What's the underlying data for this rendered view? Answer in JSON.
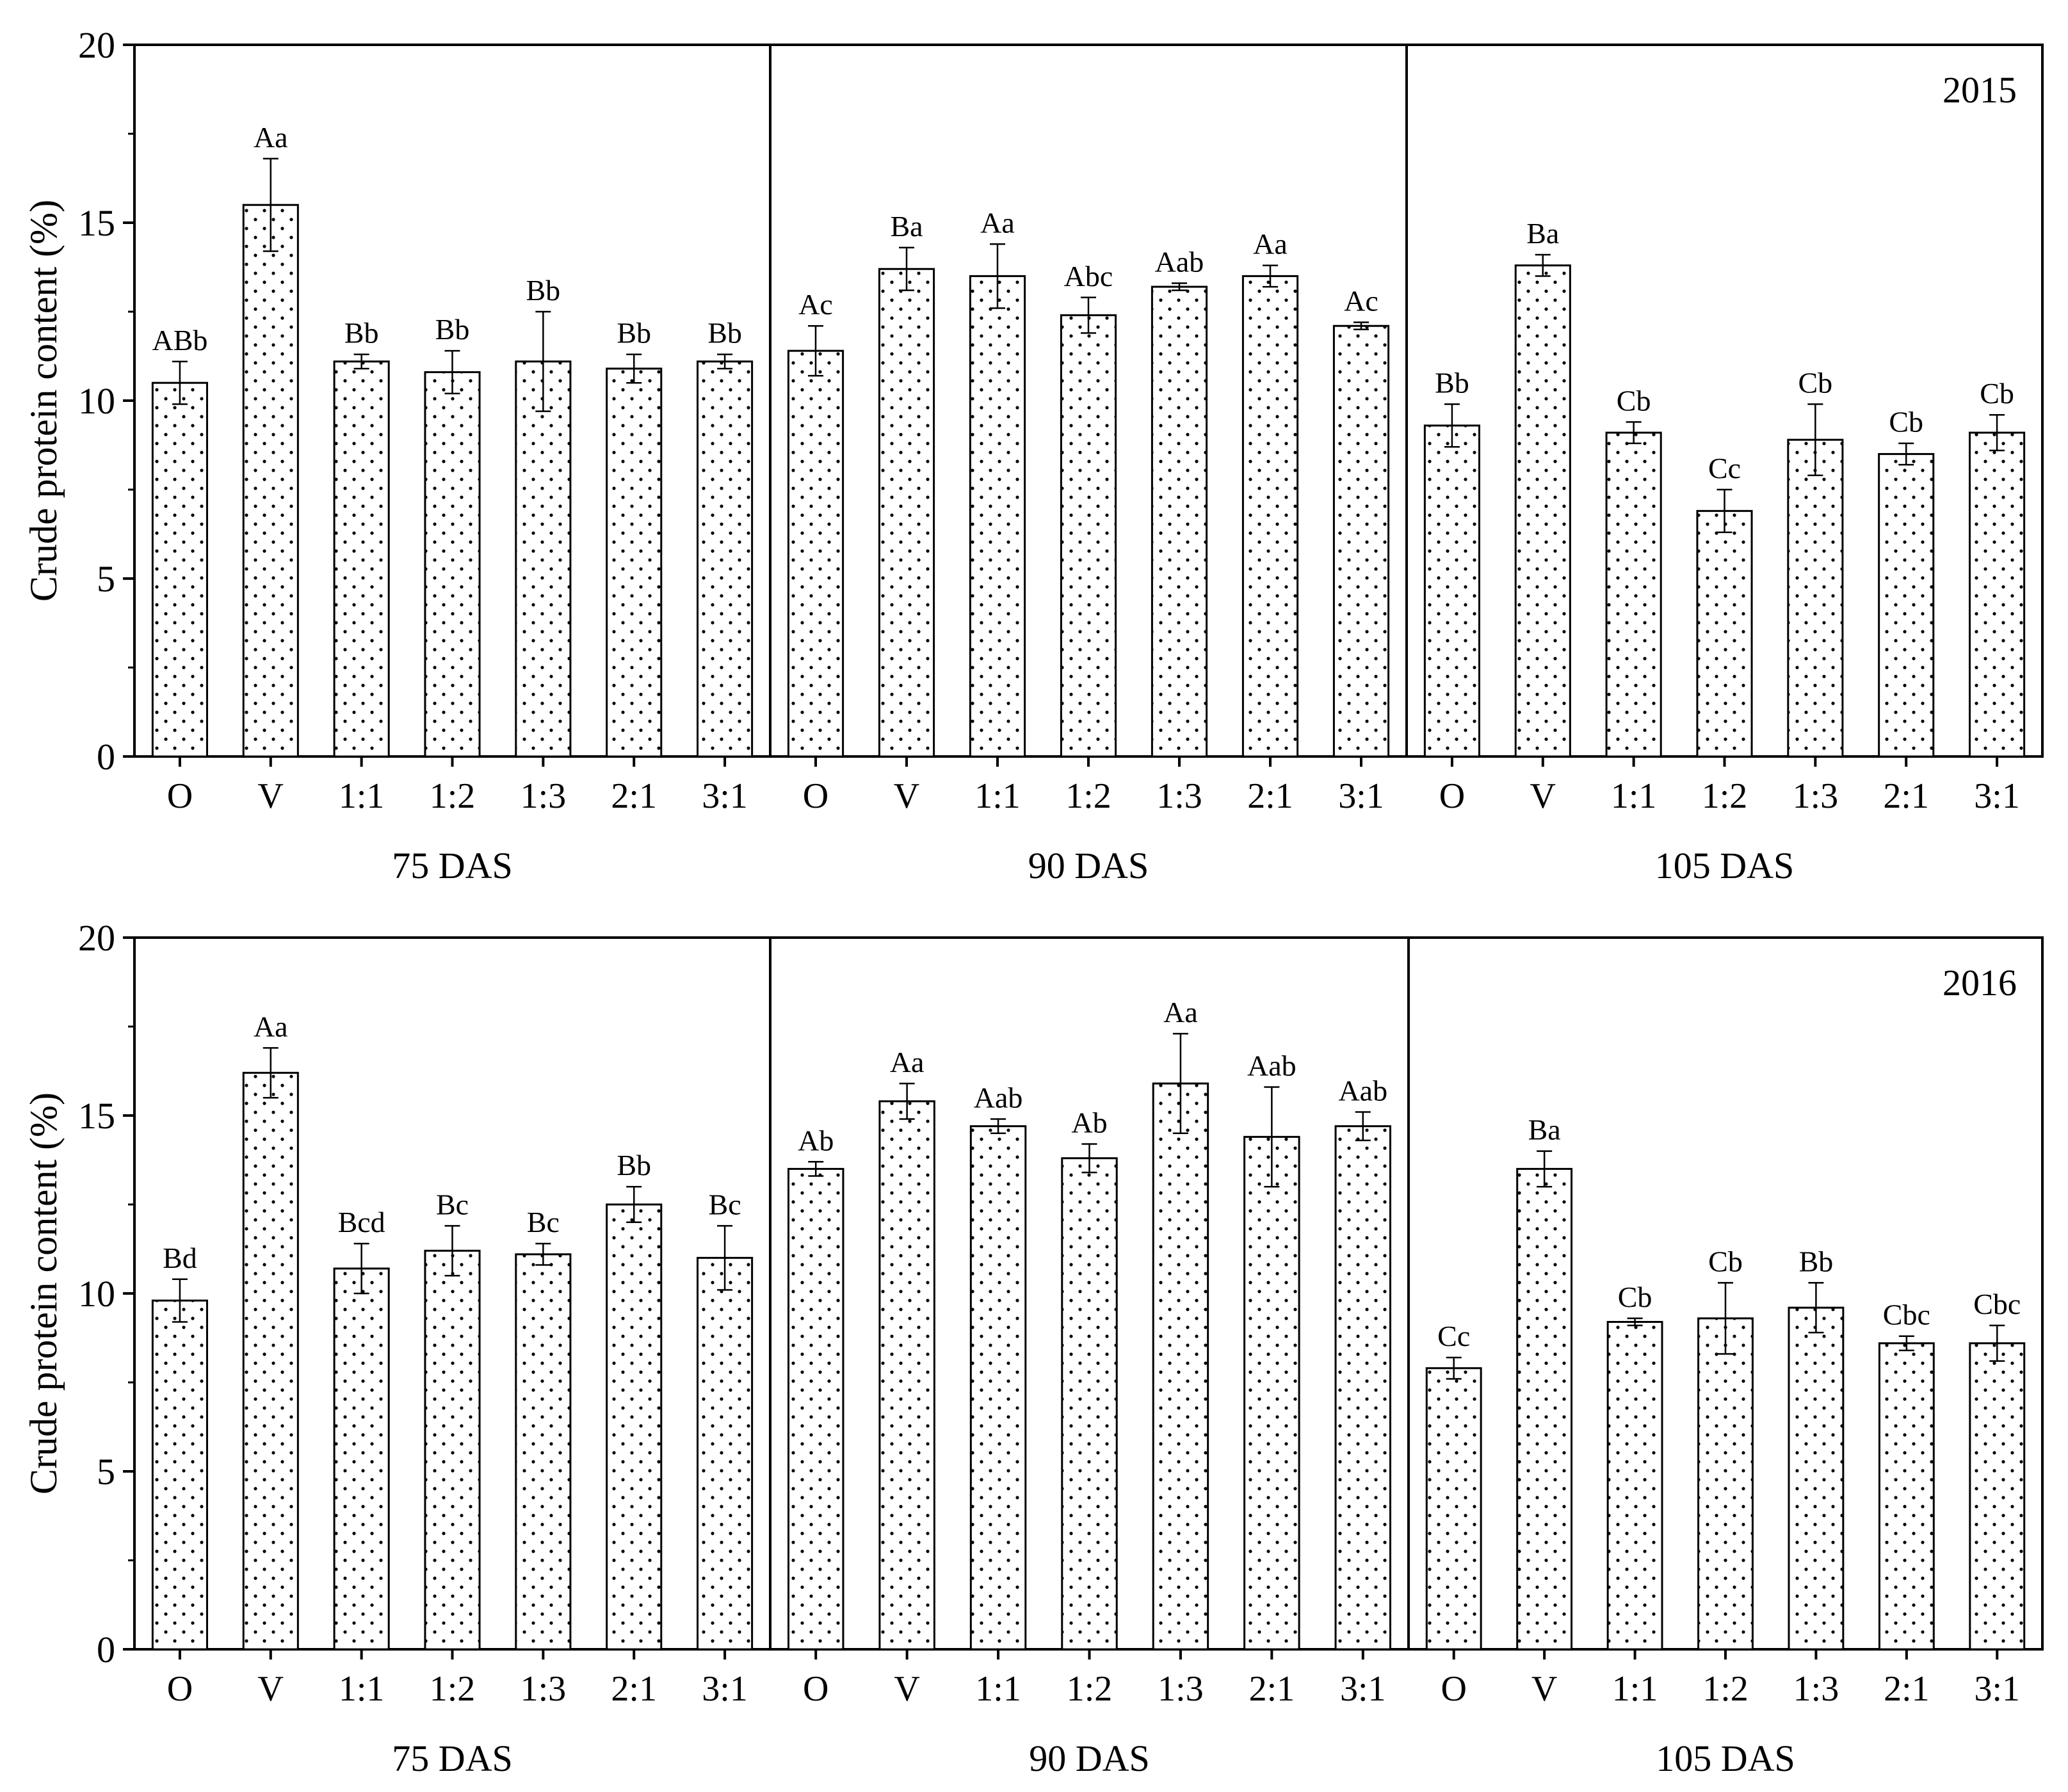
{
  "figure": {
    "ylabel": "Crude protein content (%)"
  },
  "chart_data": [
    {
      "type": "bar",
      "year": "2015",
      "ylabel": "Crude protein content (%)",
      "ylim": [
        0,
        20
      ],
      "yticks": [
        0,
        5,
        10,
        15,
        20
      ],
      "categories": [
        "O",
        "V",
        "1:1",
        "1:2",
        "1:3",
        "2:1",
        "3:1"
      ],
      "groups": [
        {
          "label": "75 DAS",
          "values": [
            10.5,
            15.5,
            11.1,
            10.8,
            11.1,
            10.9,
            11.1
          ],
          "errors": [
            0.6,
            1.3,
            0.2,
            0.6,
            1.4,
            0.4,
            0.2
          ],
          "letters": [
            "ABb",
            "Aa",
            "Bb",
            "Bb",
            "Bb",
            "Bb",
            "Bb"
          ]
        },
        {
          "label": "90 DAS",
          "values": [
            11.4,
            13.7,
            13.5,
            12.4,
            13.2,
            13.5,
            12.1
          ],
          "errors": [
            0.7,
            0.6,
            0.9,
            0.5,
            0.1,
            0.3,
            0.1
          ],
          "letters": [
            "Ac",
            "Ba",
            "Aa",
            "Abc",
            "Aab",
            "Aa",
            "Ac"
          ]
        },
        {
          "label": "105 DAS",
          "values": [
            9.3,
            13.8,
            9.1,
            6.9,
            8.9,
            8.5,
            9.1
          ],
          "errors": [
            0.6,
            0.3,
            0.3,
            0.6,
            1.0,
            0.3,
            0.5
          ],
          "letters": [
            "Bb",
            "Ba",
            "Cb",
            "Cc",
            "Cb",
            "Cb",
            "Cb"
          ]
        }
      ]
    },
    {
      "type": "bar",
      "year": "2016",
      "ylabel": "Crude protein content (%)",
      "ylim": [
        0,
        20
      ],
      "yticks": [
        0,
        5,
        10,
        15,
        20
      ],
      "categories": [
        "O",
        "V",
        "1:1",
        "1:2",
        "1:3",
        "2:1",
        "3:1"
      ],
      "groups": [
        {
          "label": "75 DAS",
          "values": [
            9.8,
            16.2,
            10.7,
            11.2,
            11.1,
            12.5,
            11.0
          ],
          "errors": [
            0.6,
            0.7,
            0.7,
            0.7,
            0.3,
            0.5,
            0.9
          ],
          "letters": [
            "Bd",
            "Aa",
            "Bcd",
            "Bc",
            "Bc",
            "Bb",
            "Bc"
          ]
        },
        {
          "label": "90 DAS",
          "values": [
            13.5,
            15.4,
            14.7,
            13.8,
            15.9,
            14.4,
            14.7
          ],
          "errors": [
            0.2,
            0.5,
            0.2,
            0.4,
            1.4,
            1.4,
            0.4
          ],
          "letters": [
            "Ab",
            "Aa",
            "Aab",
            "Ab",
            "Aa",
            "Aab",
            "Aab"
          ]
        },
        {
          "label": "105 DAS",
          "values": [
            7.9,
            13.5,
            9.2,
            9.3,
            9.6,
            8.6,
            8.6
          ],
          "errors": [
            0.3,
            0.5,
            0.1,
            1.0,
            0.7,
            0.2,
            0.5
          ],
          "letters": [
            "Cc",
            "Ba",
            "Cb",
            "Cb",
            "Bb",
            "Cbc",
            "Cbc"
          ]
        }
      ]
    }
  ]
}
